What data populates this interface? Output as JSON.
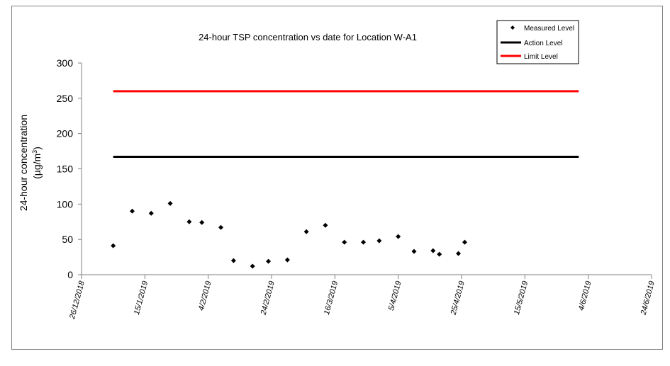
{
  "chart_data": {
    "type": "scatter",
    "title": "24-hour TSP concentration vs date for Location W-A1",
    "ylabel_line1": "24-hour concentration",
    "ylabel_line2_prefix": "(µg/m",
    "ylabel_line2_sup": "3",
    "ylabel_line2_suffix": ")",
    "xlabel": "",
    "ylim": [
      0,
      300
    ],
    "yticks": [
      "0",
      "50",
      "100",
      "150",
      "200",
      "250",
      "300"
    ],
    "xlim": [
      "2018-12-26",
      "2019-06-24"
    ],
    "xticks": [
      {
        "date": "2018-12-26",
        "label": "26/12/2018"
      },
      {
        "date": "2019-01-15",
        "label": "15/1/2019"
      },
      {
        "date": "2019-02-04",
        "label": "4/2/2019"
      },
      {
        "date": "2019-02-24",
        "label": "24/2/2019"
      },
      {
        "date": "2019-03-16",
        "label": "16/3/2019"
      },
      {
        "date": "2019-04-05",
        "label": "5/4/2019"
      },
      {
        "date": "2019-04-25",
        "label": "25/4/2019"
      },
      {
        "date": "2019-05-15",
        "label": "15/5/2019"
      },
      {
        "date": "2019-06-04",
        "label": "4/6/2019"
      },
      {
        "date": "2019-06-24",
        "label": "24/6/2019"
      }
    ],
    "legend_position": "top-right",
    "grid": false,
    "series": [
      {
        "name": "Measured Level",
        "kind": "points",
        "marker": "diamond",
        "color": "#000000",
        "points": [
          {
            "x": "2019-01-05",
            "y": 41
          },
          {
            "x": "2019-01-11",
            "y": 90
          },
          {
            "x": "2019-01-17",
            "y": 87
          },
          {
            "x": "2019-01-23",
            "y": 101
          },
          {
            "x": "2019-01-29",
            "y": 75
          },
          {
            "x": "2019-02-02",
            "y": 74
          },
          {
            "x": "2019-02-08",
            "y": 67
          },
          {
            "x": "2019-02-12",
            "y": 20
          },
          {
            "x": "2019-02-18",
            "y": 12
          },
          {
            "x": "2019-02-23",
            "y": 19
          },
          {
            "x": "2019-03-01",
            "y": 21
          },
          {
            "x": "2019-03-07",
            "y": 61
          },
          {
            "x": "2019-03-13",
            "y": 70
          },
          {
            "x": "2019-03-19",
            "y": 46
          },
          {
            "x": "2019-03-25",
            "y": 46
          },
          {
            "x": "2019-03-30",
            "y": 48
          },
          {
            "x": "2019-04-05",
            "y": 54
          },
          {
            "x": "2019-04-10",
            "y": 33
          },
          {
            "x": "2019-04-16",
            "y": 34
          },
          {
            "x": "2019-04-18",
            "y": 29
          },
          {
            "x": "2019-04-24",
            "y": 30
          },
          {
            "x": "2019-04-26",
            "y": 46
          }
        ]
      },
      {
        "name": "Action Level",
        "kind": "line",
        "color": "#000000",
        "from": "2019-01-05",
        "to": "2019-06-01",
        "y": 167
      },
      {
        "name": "Limit Level",
        "kind": "line",
        "color": "#ff0000",
        "from": "2019-01-05",
        "to": "2019-06-01",
        "y": 260
      }
    ]
  }
}
